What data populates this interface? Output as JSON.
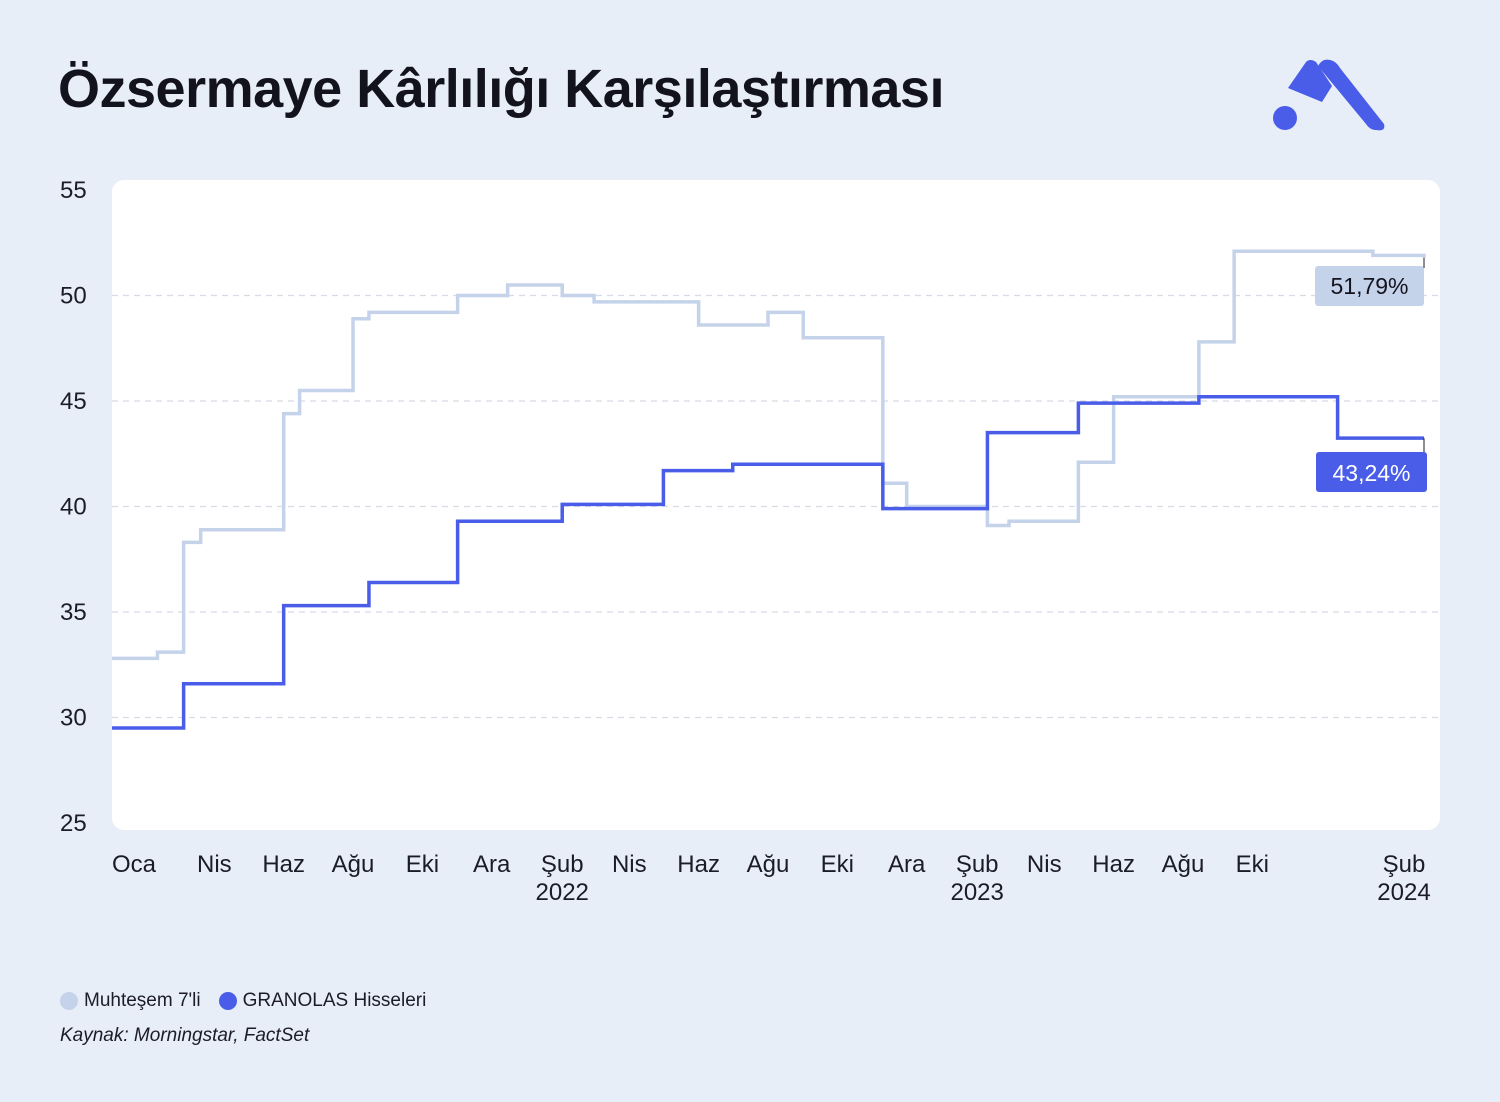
{
  "title": "Özsermaye Kârlılığı Karşılaştırması",
  "logo": {
    "icon": "brand-logo-icon",
    "color": "#4a5de8"
  },
  "colors": {
    "light": "#c5d3ea",
    "dark": "#4a5de8"
  },
  "legend": [
    {
      "label": "Muhteşem 7'li",
      "color": "#c5d3ea"
    },
    {
      "label": "GRANOLAS Hisseleri",
      "color": "#4a5de8"
    }
  ],
  "source": "Kaynak: Morningstar, FactSet",
  "chart_data": {
    "type": "line",
    "step": true,
    "grid": true,
    "ylim": [
      25,
      55
    ],
    "yticks": [
      25,
      30,
      35,
      40,
      45,
      50,
      55
    ],
    "xlim": [
      "2021-01-01",
      "2024-02-29"
    ],
    "xticks": [
      {
        "date": "2021-01-01",
        "label": "Oca",
        "year": ""
      },
      {
        "date": "2021-04-01",
        "label": "Nis",
        "year": ""
      },
      {
        "date": "2021-06-01",
        "label": "Haz",
        "year": ""
      },
      {
        "date": "2021-08-01",
        "label": "Ağu",
        "year": ""
      },
      {
        "date": "2021-10-01",
        "label": "Eki",
        "year": ""
      },
      {
        "date": "2021-12-01",
        "label": "Ara",
        "year": ""
      },
      {
        "date": "2022-02-01",
        "label": "Şub",
        "year": "2022"
      },
      {
        "date": "2022-04-01",
        "label": "Nis",
        "year": ""
      },
      {
        "date": "2022-06-01",
        "label": "Haz",
        "year": ""
      },
      {
        "date": "2022-08-01",
        "label": "Ağu",
        "year": ""
      },
      {
        "date": "2022-10-01",
        "label": "Eki",
        "year": ""
      },
      {
        "date": "2022-12-01",
        "label": "Ara",
        "year": ""
      },
      {
        "date": "2023-02-01",
        "label": "Şub",
        "year": "2023"
      },
      {
        "date": "2023-04-01",
        "label": "Nis",
        "year": ""
      },
      {
        "date": "2023-06-01",
        "label": "Haz",
        "year": ""
      },
      {
        "date": "2023-08-01",
        "label": "Ağu",
        "year": ""
      },
      {
        "date": "2023-10-01",
        "label": "Eki",
        "year": ""
      },
      {
        "date": "2024-02-01",
        "label": "Şub",
        "year": "2024"
      }
    ],
    "series": [
      {
        "name": "Muhteşem 7'li",
        "color": "#c5d3ea",
        "end_label": "51,79%",
        "points": [
          [
            "2021-01-01",
            32.8
          ],
          [
            "2021-02-10",
            33.1
          ],
          [
            "2021-03-05",
            38.3
          ],
          [
            "2021-03-20",
            38.9
          ],
          [
            "2021-06-01",
            44.4
          ],
          [
            "2021-06-15",
            45.5
          ],
          [
            "2021-08-01",
            48.9
          ],
          [
            "2021-08-15",
            49.2
          ],
          [
            "2021-11-01",
            50.0
          ],
          [
            "2021-12-15",
            50.5
          ],
          [
            "2022-02-01",
            50.0
          ],
          [
            "2022-03-01",
            49.7
          ],
          [
            "2022-06-01",
            48.6
          ],
          [
            "2022-08-01",
            49.2
          ],
          [
            "2022-09-01",
            48.0
          ],
          [
            "2022-11-10",
            41.1
          ],
          [
            "2022-12-01",
            40.0
          ],
          [
            "2023-02-10",
            39.1
          ],
          [
            "2023-03-01",
            39.3
          ],
          [
            "2023-05-01",
            42.1
          ],
          [
            "2023-06-01",
            45.2
          ],
          [
            "2023-08-15",
            47.8
          ],
          [
            "2023-09-15",
            52.1
          ],
          [
            "2024-01-15",
            51.9
          ],
          [
            "2024-02-29",
            51.79
          ]
        ]
      },
      {
        "name": "GRANOLAS Hisseleri",
        "color": "#4a5de8",
        "end_label": "43,24%",
        "points": [
          [
            "2021-01-01",
            29.5
          ],
          [
            "2021-03-05",
            31.6
          ],
          [
            "2021-06-01",
            35.3
          ],
          [
            "2021-08-15",
            36.4
          ],
          [
            "2021-11-01",
            39.3
          ],
          [
            "2022-02-01",
            40.1
          ],
          [
            "2022-05-01",
            41.7
          ],
          [
            "2022-07-01",
            42.0
          ],
          [
            "2022-11-10",
            39.9
          ],
          [
            "2023-02-10",
            43.5
          ],
          [
            "2023-05-01",
            44.9
          ],
          [
            "2023-08-15",
            45.2
          ],
          [
            "2023-12-15",
            43.24
          ],
          [
            "2024-02-29",
            43.24
          ]
        ]
      }
    ]
  }
}
